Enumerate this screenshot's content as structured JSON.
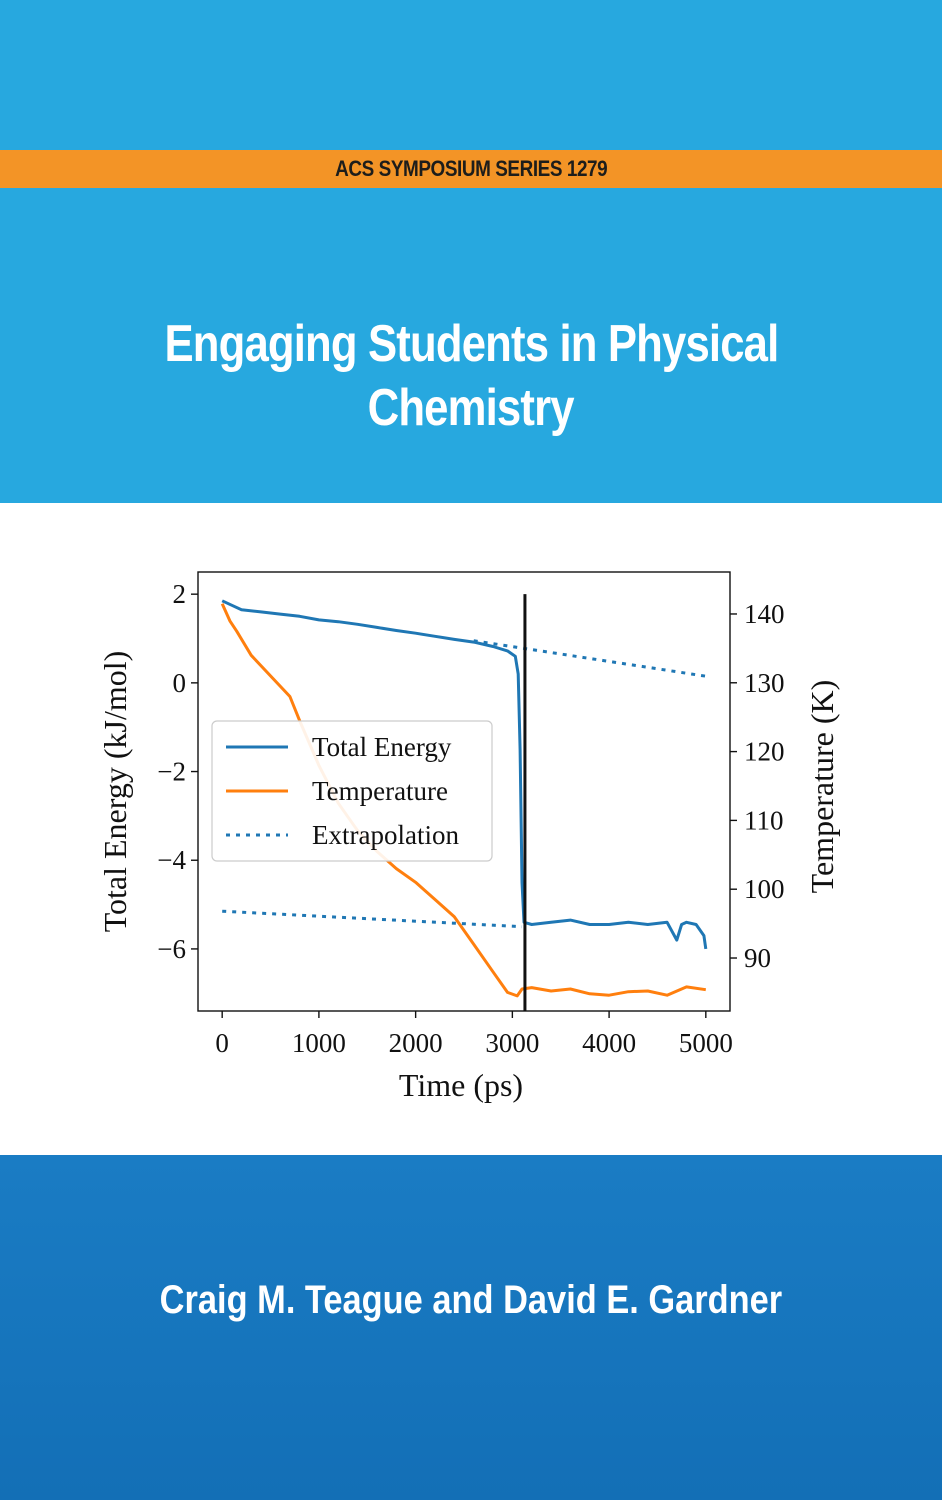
{
  "cover": {
    "series": "ACS SYMPOSIUM SERIES 1279",
    "title_line1": "Engaging Students in Physical",
    "title_line2": "Chemistry",
    "authors": "Craig M. Teague and David E. Gardner",
    "colors": {
      "top_band": "#27a8df",
      "series_strip": "#f39426",
      "bottom_band": "#136fb6"
    }
  },
  "chart_data": {
    "type": "line",
    "xlabel": "Time (ps)",
    "ylabel_left": "Total Energy (kJ/mol)",
    "ylabel_right": "Temperature (K)",
    "xlim": [
      -250,
      5250
    ],
    "ylim_left": [
      -7.4,
      2.5
    ],
    "ylim_right": [
      82.3,
      146.1
    ],
    "x_ticks": [
      "0",
      "1000",
      "2000",
      "3000",
      "4000",
      "5000"
    ],
    "y_left_ticks": [
      "2",
      "0",
      "−2",
      "−4",
      "−6"
    ],
    "y_right_ticks": [
      "140",
      "130",
      "120",
      "110",
      "100",
      "90"
    ],
    "grid": false,
    "legend_position": "center-left",
    "legend": [
      "Total Energy",
      "Temperature",
      "Extrapolation"
    ],
    "vertical_marker_x": 3130,
    "series": [
      {
        "name": "Total Energy",
        "axis": "left",
        "color": "#1f77b4",
        "style": "solid",
        "x": [
          0,
          100,
          200,
          400,
          600,
          800,
          1000,
          1200,
          1400,
          1600,
          1800,
          2000,
          2200,
          2400,
          2600,
          2800,
          2950,
          3030,
          3060,
          3080,
          3100,
          3120,
          3200,
          3400,
          3600,
          3800,
          4000,
          4200,
          4400,
          4600,
          4700,
          4750,
          4800,
          4900,
          4980,
          5000
        ],
        "values": [
          1.85,
          1.75,
          1.65,
          1.6,
          1.55,
          1.5,
          1.42,
          1.38,
          1.32,
          1.25,
          1.18,
          1.12,
          1.05,
          0.98,
          0.92,
          0.82,
          0.72,
          0.6,
          0.2,
          -1.5,
          -4.5,
          -5.4,
          -5.45,
          -5.4,
          -5.35,
          -5.45,
          -5.45,
          -5.4,
          -5.45,
          -5.4,
          -5.8,
          -5.45,
          -5.4,
          -5.45,
          -5.7,
          -6.0
        ]
      },
      {
        "name": "Temperature",
        "axis": "right",
        "color": "#ff7f0e",
        "style": "solid",
        "x": [
          0,
          80,
          150,
          300,
          500,
          700,
          800,
          1000,
          1200,
          1400,
          1600,
          1800,
          2000,
          2200,
          2400,
          2600,
          2800,
          2950,
          3050,
          3100,
          3200,
          3400,
          3600,
          3800,
          4000,
          4200,
          4400,
          4600,
          4800,
          5000
        ],
        "values": [
          141.5,
          139.0,
          137.5,
          134.0,
          131.0,
          128.0,
          124.5,
          118.0,
          112.5,
          108.5,
          105.5,
          103.0,
          101.0,
          98.5,
          96.0,
          92.0,
          88.0,
          85.0,
          84.5,
          85.5,
          85.7,
          85.2,
          85.5,
          84.8,
          84.6,
          85.1,
          85.2,
          84.6,
          85.8,
          85.4
        ]
      },
      {
        "name": "Extrapolation",
        "axis": "left",
        "color": "#1f77b4",
        "style": "dotted",
        "segments": [
          {
            "x": [
              2600,
              5000
            ],
            "values": [
              0.95,
              0.15
            ]
          },
          {
            "x": [
              0,
              3100
            ],
            "values": [
              -5.15,
              -5.5
            ]
          }
        ]
      }
    ]
  }
}
